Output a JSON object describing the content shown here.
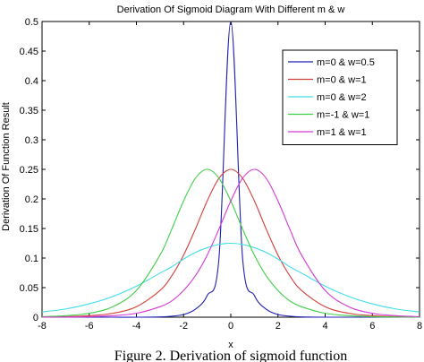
{
  "chart_data": {
    "type": "line",
    "title": "Derivation Of Sigmoid Diagram With Different m & w",
    "xlabel": "x",
    "ylabel": "Derivation Of Function Result",
    "xlim": [
      -8,
      8
    ],
    "ylim": [
      0,
      0.5
    ],
    "xticks": [
      "-8",
      "-6",
      "-4",
      "-2",
      "0",
      "2",
      "4",
      "6",
      "8"
    ],
    "yticks": [
      "0",
      "0.05",
      "0.1",
      "0.15",
      "0.2",
      "0.25",
      "0.3",
      "0.35",
      "0.4",
      "0.45",
      "0.5"
    ],
    "grid": false,
    "legend_position": "top-right",
    "x": [
      -8,
      -7,
      -6,
      -5,
      -4,
      -3,
      -2.5,
      -2,
      -1.5,
      -1,
      -0.5,
      0,
      0.5,
      1,
      1.5,
      2,
      2.5,
      3,
      4,
      5,
      6,
      7,
      8
    ],
    "series": [
      {
        "name": "m=0 & w=0.5",
        "color": "#1f1fb4",
        "values": [
          0.0,
          0.0,
          0.0,
          0.0,
          0.0,
          0.0005,
          0.0017,
          0.0045,
          0.0135,
          0.0367,
          0.1,
          0.5,
          0.1,
          0.0367,
          0.0135,
          0.0045,
          0.0017,
          0.0005,
          0.0,
          0.0,
          0.0,
          0.0,
          0.0
        ]
      },
      {
        "name": "m=0 & w=1",
        "color": "#d0403a",
        "values": [
          0.0003,
          0.0009,
          0.0025,
          0.0066,
          0.0177,
          0.0452,
          0.0701,
          0.105,
          0.1491,
          0.1966,
          0.235,
          0.25,
          0.235,
          0.1966,
          0.1491,
          0.105,
          0.0701,
          0.0452,
          0.0177,
          0.0066,
          0.0025,
          0.0009,
          0.0003
        ]
      },
      {
        "name": "m=0 & w=2",
        "color": "#3fdde8",
        "values": [
          0.0089,
          0.0138,
          0.0226,
          0.0351,
          0.0525,
          0.0745,
          0.0854,
          0.0983,
          0.1095,
          0.1175,
          0.1231,
          0.125,
          0.1231,
          0.1175,
          0.1095,
          0.0983,
          0.0854,
          0.0745,
          0.0525,
          0.0351,
          0.0226,
          0.0138,
          0.0089
        ]
      },
      {
        "name": "m=-1 & w=1",
        "color": "#3fcf47",
        "values": [
          0.0009,
          0.0025,
          0.0066,
          0.0177,
          0.0452,
          0.105,
          0.1491,
          0.1966,
          0.235,
          0.25,
          0.235,
          0.1966,
          0.1491,
          0.105,
          0.0701,
          0.0452,
          0.0275,
          0.0177,
          0.0066,
          0.0025,
          0.0009,
          0.0003,
          0.0001
        ]
      },
      {
        "name": "m=1 & w=1",
        "color": "#d23ad2",
        "values": [
          0.0001,
          0.0003,
          0.0009,
          0.0025,
          0.0066,
          0.0177,
          0.0275,
          0.0452,
          0.0701,
          0.105,
          0.1491,
          0.1966,
          0.235,
          0.25,
          0.235,
          0.1966,
          0.1491,
          0.105,
          0.0452,
          0.0177,
          0.0066,
          0.0025,
          0.0009
        ]
      }
    ]
  },
  "caption": "Figure 2. Derivation of sigmoid function"
}
